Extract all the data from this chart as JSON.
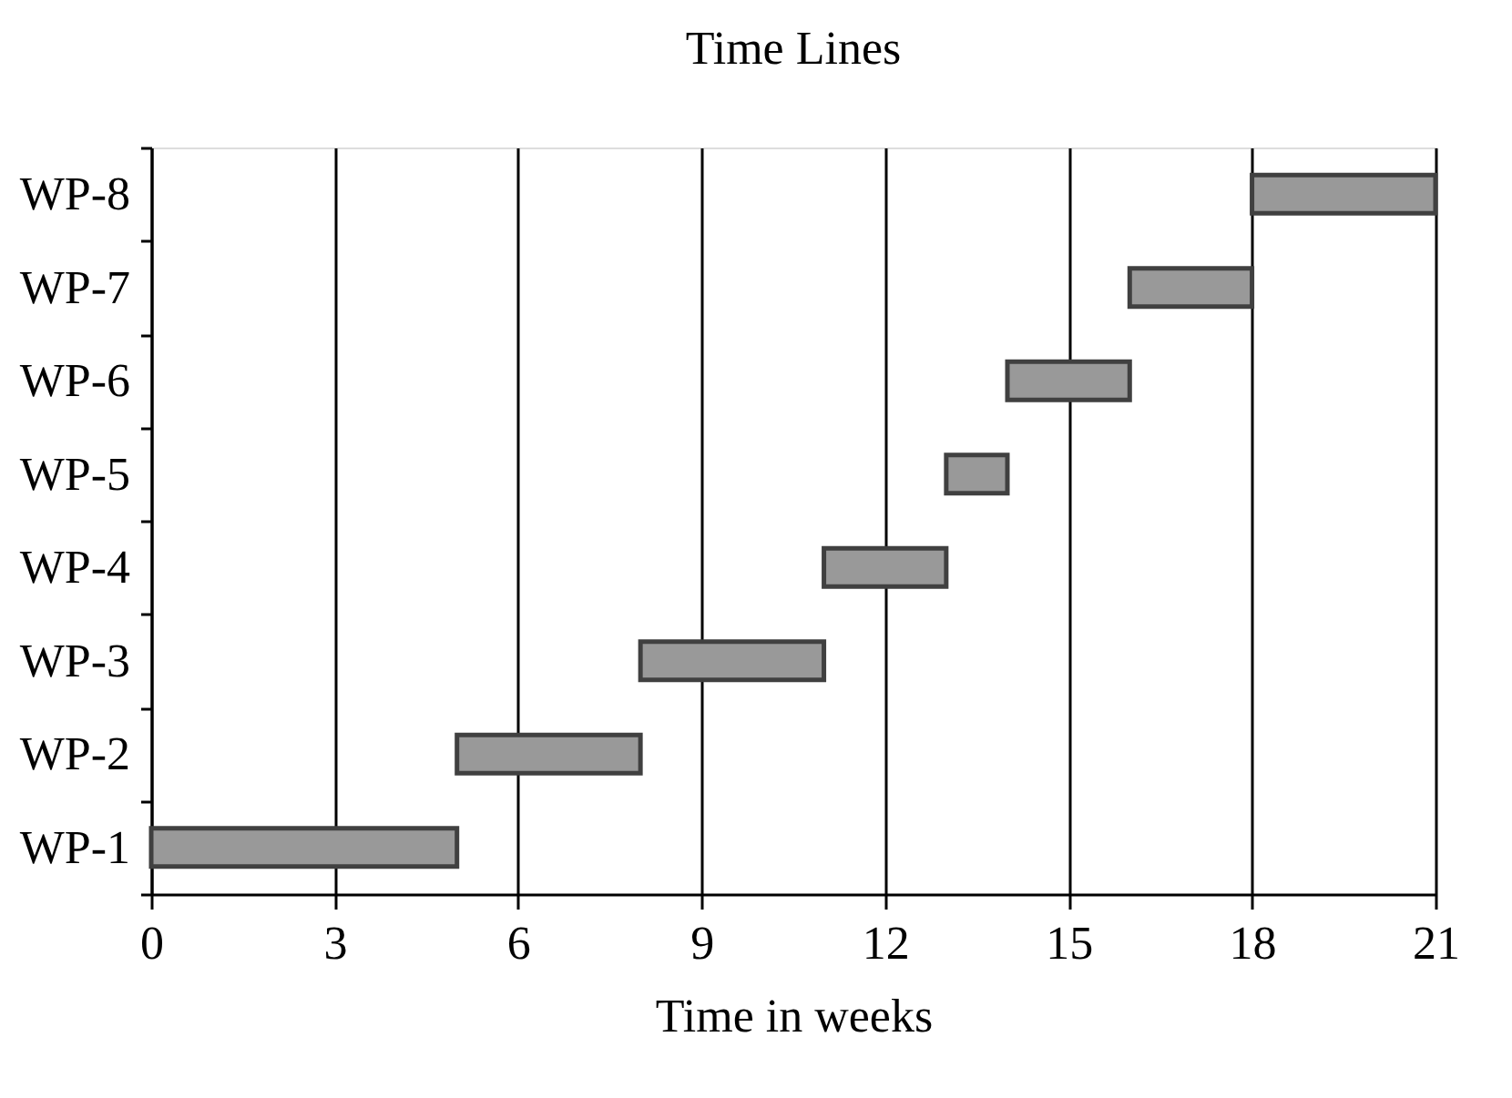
{
  "chart_data": {
    "type": "bar",
    "orientation": "horizontal",
    "title": "Time Lines",
    "xlabel": "Time in weeks",
    "categories": [
      "WP-8",
      "WP-7",
      "WP-6",
      "WP-5",
      "WP-4",
      "WP-3",
      "WP-2",
      "WP-1"
    ],
    "base": [
      18,
      16,
      14,
      13,
      11,
      8,
      5,
      0
    ],
    "values": [
      3,
      2,
      2,
      1,
      2,
      3,
      3,
      5
    ],
    "color": "#999999",
    "xlim": [
      0,
      21
    ],
    "xticks": [
      0,
      3,
      6,
      9,
      12,
      15,
      18,
      21
    ],
    "grid": "x"
  }
}
